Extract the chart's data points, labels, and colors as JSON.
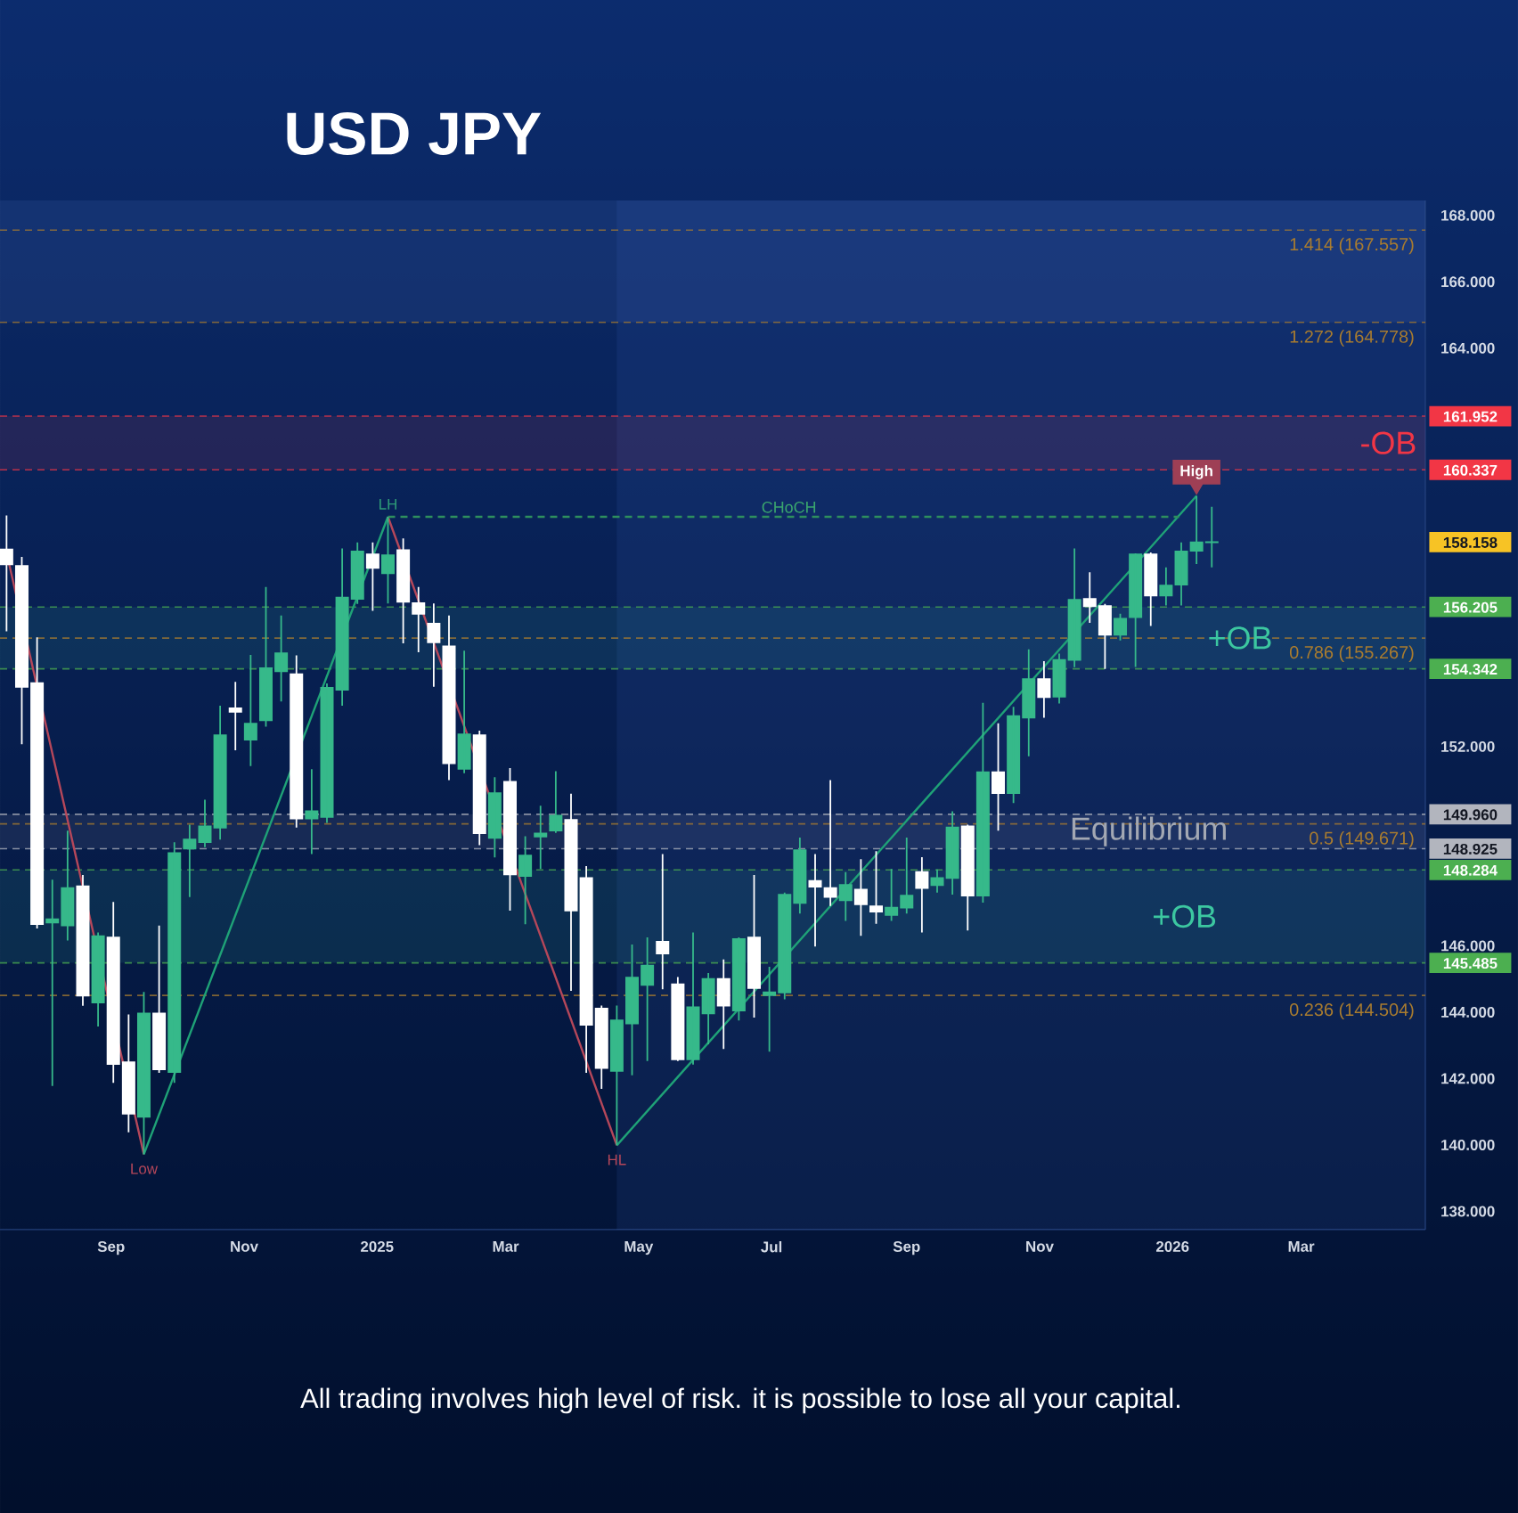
{
  "chart_data": {
    "type": "candlestick",
    "title": "USD JPY",
    "x": [
      "2024-07-15",
      "2024-07-22",
      "2024-07-29",
      "2024-08-05",
      "2024-08-12",
      "2024-08-19",
      "2024-08-26",
      "2024-09-02",
      "2024-09-09",
      "2024-09-16",
      "2024-09-23",
      "2024-09-30",
      "2024-10-07",
      "2024-10-14",
      "2024-10-21",
      "2024-10-28",
      "2024-11-04",
      "2024-11-11",
      "2024-11-18",
      "2024-11-25",
      "2024-12-02",
      "2024-12-09",
      "2024-12-16",
      "2024-12-23",
      "2024-12-30",
      "2025-01-06",
      "2025-01-13",
      "2025-01-20",
      "2025-01-27",
      "2025-02-03",
      "2025-02-10",
      "2025-02-17",
      "2025-02-24",
      "2025-03-03",
      "2025-03-10",
      "2025-03-17",
      "2025-03-24",
      "2025-03-31",
      "2025-04-07",
      "2025-04-14",
      "2025-04-21",
      "2025-04-28",
      "2025-05-05",
      "2025-05-12",
      "2025-05-19",
      "2025-05-26",
      "2025-06-02",
      "2025-06-09",
      "2025-06-16",
      "2025-06-23",
      "2025-06-30",
      "2025-07-07",
      "2025-07-14",
      "2025-07-21",
      "2025-07-28",
      "2025-08-04",
      "2025-08-11",
      "2025-08-18",
      "2025-08-25",
      "2025-09-01",
      "2025-09-08",
      "2025-09-15",
      "2025-09-22",
      "2025-09-29",
      "2025-10-06",
      "2025-10-13",
      "2025-10-20",
      "2025-10-27",
      "2025-11-03",
      "2025-11-10",
      "2025-11-17",
      "2025-11-24",
      "2025-12-01",
      "2025-12-08",
      "2025-12-15",
      "2025-12-22",
      "2025-12-29",
      "2026-01-05",
      "2026-01-12",
      "2026-01-19"
    ],
    "ohlc": [
      [
        157.94,
        158.96,
        155.47,
        157.49
      ],
      [
        157.44,
        157.71,
        152.07,
        153.8
      ],
      [
        153.91,
        155.29,
        146.52,
        146.65
      ],
      [
        146.7,
        147.99,
        141.78,
        146.8
      ],
      [
        146.61,
        149.47,
        146.16,
        147.74
      ],
      [
        147.79,
        148.13,
        144.19,
        144.5
      ],
      [
        144.29,
        146.4,
        143.57,
        146.29
      ],
      [
        146.25,
        147.32,
        141.87,
        142.44
      ],
      [
        142.49,
        143.93,
        140.38,
        140.94
      ],
      [
        140.85,
        144.61,
        139.72,
        143.96
      ],
      [
        143.96,
        146.61,
        142.17,
        142.28
      ],
      [
        142.2,
        149.12,
        141.87,
        148.79
      ],
      [
        148.93,
        149.65,
        147.47,
        149.2
      ],
      [
        149.12,
        150.4,
        148.97,
        149.6
      ],
      [
        149.56,
        153.23,
        149.2,
        152.34
      ],
      [
        153.15,
        153.95,
        151.89,
        153.05
      ],
      [
        152.21,
        154.76,
        151.41,
        152.69
      ],
      [
        152.79,
        156.81,
        152.6,
        154.36
      ],
      [
        154.27,
        155.95,
        153.36,
        154.81
      ],
      [
        154.18,
        154.75,
        149.56,
        149.83
      ],
      [
        149.83,
        151.32,
        148.76,
        150.05
      ],
      [
        149.88,
        153.9,
        149.7,
        153.77
      ],
      [
        153.71,
        157.97,
        153.23,
        156.49
      ],
      [
        156.45,
        158.15,
        156.3,
        157.88
      ],
      [
        157.79,
        158.15,
        156.09,
        157.38
      ],
      [
        157.22,
        158.92,
        156.31,
        157.76
      ],
      [
        157.92,
        158.27,
        155.11,
        156.36
      ],
      [
        156.32,
        156.81,
        154.84,
        156.0
      ],
      [
        155.7,
        156.31,
        153.8,
        155.14
      ],
      [
        155.02,
        155.95,
        150.99,
        151.5
      ],
      [
        151.33,
        154.89,
        151.2,
        152.37
      ],
      [
        152.34,
        152.48,
        149.03,
        149.39
      ],
      [
        149.25,
        151.08,
        148.66,
        150.6
      ],
      [
        150.94,
        151.35,
        147.06,
        148.15
      ],
      [
        148.1,
        149.3,
        146.65,
        148.72
      ],
      [
        149.29,
        150.22,
        148.31,
        149.38
      ],
      [
        149.47,
        151.26,
        149.4,
        149.92
      ],
      [
        149.79,
        150.58,
        144.64,
        147.06
      ],
      [
        148.04,
        148.4,
        142.17,
        143.62
      ],
      [
        144.11,
        144.2,
        141.69,
        142.32
      ],
      [
        142.23,
        144.2,
        139.99,
        143.75
      ],
      [
        143.66,
        146.04,
        142.1,
        145.04
      ],
      [
        144.82,
        146.25,
        142.53,
        145.4
      ],
      [
        146.12,
        148.76,
        144.69,
        145.77
      ],
      [
        144.84,
        145.06,
        142.53,
        142.58
      ],
      [
        142.58,
        146.4,
        142.42,
        144.15
      ],
      [
        143.96,
        145.18,
        143.03,
        145.0
      ],
      [
        145.0,
        145.59,
        142.89,
        144.2
      ],
      [
        144.05,
        146.25,
        143.75,
        146.2
      ],
      [
        146.25,
        148.13,
        143.84,
        144.73
      ],
      [
        144.51,
        145.37,
        142.81,
        144.6
      ],
      [
        144.59,
        147.6,
        144.39,
        147.54
      ],
      [
        147.29,
        149.26,
        146.97,
        148.88
      ],
      [
        147.95,
        148.76,
        145.98,
        147.78
      ],
      [
        147.74,
        150.99,
        147.2,
        147.47
      ],
      [
        147.37,
        148.22,
        146.75,
        147.83
      ],
      [
        147.69,
        148.61,
        146.3,
        147.25
      ],
      [
        147.19,
        148.85,
        146.66,
        147.03
      ],
      [
        146.93,
        148.31,
        146.75,
        147.15
      ],
      [
        147.15,
        149.26,
        146.97,
        147.51
      ],
      [
        148.22,
        148.67,
        146.4,
        147.74
      ],
      [
        147.83,
        148.3,
        147.6,
        148.04
      ],
      [
        148.04,
        150.05,
        147.54,
        149.56
      ],
      [
        149.6,
        149.65,
        146.46,
        147.51
      ],
      [
        147.51,
        153.32,
        147.3,
        151.23
      ],
      [
        151.23,
        152.7,
        149.47,
        150.6
      ],
      [
        150.6,
        153.2,
        150.3,
        152.92
      ],
      [
        152.87,
        154.93,
        151.71,
        154.03
      ],
      [
        154.03,
        154.57,
        152.87,
        153.49
      ],
      [
        153.5,
        154.8,
        153.3,
        154.61
      ],
      [
        154.61,
        157.97,
        154.39,
        156.42
      ],
      [
        156.45,
        157.25,
        155.73,
        156.23
      ],
      [
        156.23,
        156.3,
        154.34,
        155.37
      ],
      [
        155.37,
        156.0,
        155.2,
        155.85
      ],
      [
        155.9,
        157.82,
        154.4,
        157.79
      ],
      [
        157.79,
        157.85,
        155.63,
        156.55
      ],
      [
        156.55,
        157.4,
        156.25,
        156.85
      ],
      [
        156.88,
        158.15,
        156.25,
        157.88
      ],
      [
        157.9,
        159.55,
        157.5,
        158.15
      ],
      [
        158.15,
        159.22,
        157.4,
        158.158
      ]
    ],
    "colors": [
      "#ffffff",
      "#ffffff",
      "#ffffff",
      "#36b98a",
      "#36b98a",
      "#ffffff",
      "#36b98a",
      "#ffffff",
      "#ffffff",
      "#36b98a",
      "#ffffff",
      "#36b98a",
      "#36b98a",
      "#36b98a",
      "#36b98a",
      "#ffffff",
      "#36b98a",
      "#36b98a",
      "#36b98a",
      "#ffffff",
      "#36b98a",
      "#36b98a",
      "#36b98a",
      "#36b98a",
      "#ffffff",
      "#36b98a",
      "#ffffff",
      "#ffffff",
      "#ffffff",
      "#ffffff",
      "#36b98a",
      "#ffffff",
      "#36b98a",
      "#ffffff",
      "#36b98a",
      "#36b98a",
      "#36b98a",
      "#ffffff",
      "#ffffff",
      "#ffffff",
      "#36b98a",
      "#36b98a",
      "#36b98a",
      "#ffffff",
      "#ffffff",
      "#36b98a",
      "#36b98a",
      "#ffffff",
      "#36b98a",
      "#ffffff",
      "#36b98a",
      "#36b98a",
      "#36b98a",
      "#ffffff",
      "#ffffff",
      "#36b98a",
      "#ffffff",
      "#ffffff",
      "#36b98a",
      "#36b98a",
      "#ffffff",
      "#36b98a",
      "#36b98a",
      "#ffffff",
      "#36b98a",
      "#ffffff",
      "#36b98a",
      "#36b98a",
      "#ffffff",
      "#36b98a",
      "#36b98a",
      "#ffffff",
      "#ffffff",
      "#36b98a",
      "#36b98a",
      "#ffffff",
      "#36b98a",
      "#36b98a",
      "#36b98a",
      "#36b98a"
    ],
    "series": [
      {
        "type": "line",
        "x": [
          "2024-07-15",
          "2024-09-16"
        ],
        "values": [
          157.84,
          139.72
        ],
        "color": "#b5475a",
        "line_style": "solid"
      },
      {
        "type": "line",
        "x": [
          "2024-09-16",
          "2025-01-06"
        ],
        "values": [
          139.72,
          158.92
        ],
        "color": "#1fa277",
        "line_style": "solid"
      },
      {
        "type": "line",
        "x": [
          "2025-01-06",
          "2025-04-21"
        ],
        "values": [
          158.92,
          139.99
        ],
        "color": "#b5475a",
        "line_style": "solid"
      },
      {
        "type": "line",
        "x": [
          "2025-04-21",
          "2026-01-12"
        ],
        "values": [
          139.99,
          159.55
        ],
        "color": "#1fa277",
        "line_style": "solid"
      },
      {
        "type": "line",
        "x": [
          "2025-01-06",
          "2026-01-04"
        ],
        "values": [
          158.92,
          158.92
        ],
        "color": "#2e8f5e",
        "line_style": "dashed"
      }
    ],
    "xlim": [
      "2024-07-12",
      "2026-04-27"
    ],
    "xticks": [
      {
        "value": "2024-09-01",
        "label": "Sep"
      },
      {
        "value": "2024-11-01",
        "label": "Nov"
      },
      {
        "value": "2025-01-01",
        "label": "2025"
      },
      {
        "value": "2025-03-01",
        "label": "Mar"
      },
      {
        "value": "2025-05-01",
        "label": "May"
      },
      {
        "value": "2025-07-01",
        "label": "Jul"
      },
      {
        "value": "2025-09-01",
        "label": "Sep"
      },
      {
        "value": "2025-11-01",
        "label": "Nov"
      },
      {
        "value": "2026-01-01",
        "label": "2026"
      },
      {
        "value": "2026-03-01",
        "label": "Mar"
      }
    ],
    "ylim": [
      137.45,
      168.45
    ],
    "yticks": [
      {
        "value": 138,
        "label": "138.000"
      },
      {
        "value": 140,
        "label": "140.000"
      },
      {
        "value": 142,
        "label": "142.000"
      },
      {
        "value": 144,
        "label": "144.000"
      },
      {
        "value": 146,
        "label": "146.000"
      },
      {
        "value": 152,
        "label": "152.000"
      },
      {
        "value": 164,
        "label": "164.000"
      },
      {
        "value": 166,
        "label": "166.000"
      },
      {
        "value": 168,
        "label": "168.000"
      }
    ],
    "bands": [
      {
        "axis": "x",
        "from": "2025-04-21",
        "to": "2026-04-27",
        "color": "#4a78d8"
      },
      {
        "axis": "y",
        "from": 164.778,
        "to": 168.45,
        "color": "#6a90e0"
      },
      {
        "axis": "y",
        "from": 160.337,
        "to": 161.952,
        "label": "-OB",
        "color": "#f23645"
      },
      {
        "axis": "y",
        "from": 154.342,
        "to": 156.205,
        "label": "+OB",
        "color": "#3cc7a0"
      },
      {
        "axis": "y",
        "from": 148.925,
        "to": 149.96,
        "label": "Equilibrium",
        "color": "#a3a8b3"
      },
      {
        "axis": "y",
        "from": 145.485,
        "to": 148.284,
        "label": "+OB",
        "color": "#3cc7a0"
      }
    ],
    "ref_lines": [
      {
        "axis": "y",
        "value": 167.557,
        "color": "#a97c2f",
        "line_style": "dashed"
      },
      {
        "axis": "y",
        "value": 164.778,
        "color": "#a97c2f",
        "line_style": "dashed"
      },
      {
        "axis": "y",
        "value": 155.267,
        "color": "#a97c2f",
        "line_style": "dashed"
      },
      {
        "axis": "y",
        "value": 149.671,
        "color": "#a97c2f",
        "line_style": "dashed"
      },
      {
        "axis": "y",
        "value": 144.504,
        "color": "#a97c2f",
        "line_style": "dashed"
      },
      {
        "axis": "y",
        "value": 161.952,
        "label": "161.952",
        "color": "#f23645",
        "line_style": "dashed"
      },
      {
        "axis": "y",
        "value": 160.337,
        "label": "160.337",
        "color": "#f23645",
        "line_style": "dashed"
      },
      {
        "axis": "y",
        "value": 156.205,
        "label": "156.205",
        "color": "#4caf50",
        "line_style": "dashed"
      },
      {
        "axis": "y",
        "value": 154.342,
        "label": "154.342",
        "color": "#4caf50",
        "line_style": "dashed"
      },
      {
        "axis": "y",
        "value": 149.96,
        "label": "149.960",
        "color": "#b2b5be",
        "line_style": "dashed"
      },
      {
        "axis": "y",
        "value": 148.925,
        "label": "148.925",
        "color": "#b2b5be",
        "line_style": "dashed"
      },
      {
        "axis": "y",
        "value": 148.284,
        "label": "148.284",
        "color": "#4caf50",
        "line_style": "dashed"
      },
      {
        "axis": "y",
        "value": 145.485,
        "label": "145.485",
        "color": "#4caf50",
        "line_style": "dashed"
      }
    ],
    "annotations": [
      {
        "text": "LH",
        "x": "2025-01-06",
        "y": 158.92
      },
      {
        "text": "Low",
        "x": "2024-09-16",
        "y": 139.72
      },
      {
        "text": "HL",
        "x": "2025-04-21",
        "y": 139.99
      },
      {
        "text": "High",
        "x": "2026-01-12",
        "y": 159.55
      },
      {
        "text": "CHoCH",
        "x": "2025-07-09",
        "y": 158.92
      },
      {
        "text": "1.414 (167.557)",
        "x": "2026-04-23",
        "y": 167.557
      },
      {
        "text": "1.272 (164.778)",
        "x": "2026-04-23",
        "y": 164.778
      },
      {
        "text": "0.786 (155.267)",
        "x": "2026-04-23",
        "y": 155.267
      },
      {
        "text": "0.5 (149.671)",
        "x": "2026-04-23",
        "y": 149.671
      },
      {
        "text": "0.236 (144.504)",
        "x": "2026-04-23",
        "y": 144.504
      },
      "158.158",
      "All trading involves high level of risk. it is possible to lose all your capital."
    ]
  }
}
